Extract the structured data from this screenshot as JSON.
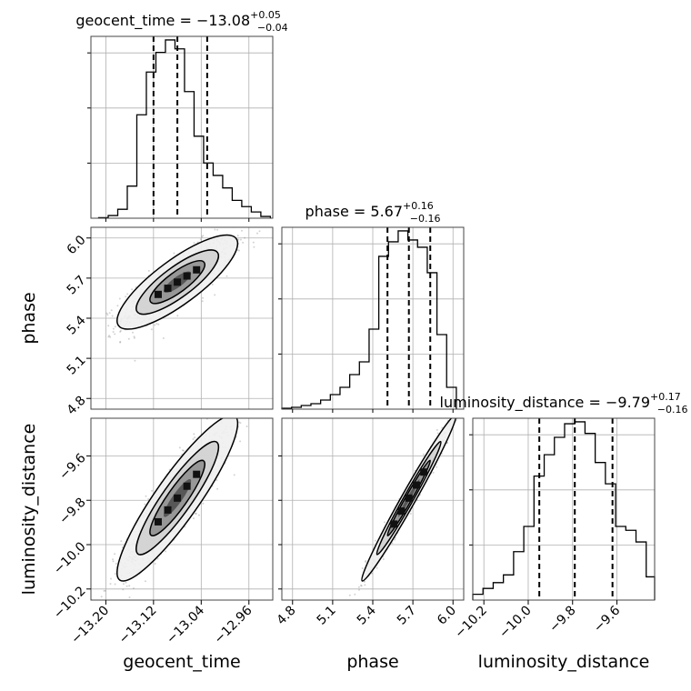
{
  "chart_data": {
    "type": "corner",
    "grid": true,
    "parameters": [
      {
        "name": "geocent_time",
        "xlabel": "geocent_time",
        "title": {
          "prefix": "geocent_time = ",
          "median": "−13.08",
          "upper": "+0.05",
          "lower": "−0.04"
        },
        "range": [
          -13.225,
          -12.92
        ],
        "ticks": [
          -13.2,
          -13.12,
          -13.04,
          -12.96
        ],
        "tick_labels": [
          "−13.20",
          "−13.12",
          "−13.04",
          "−12.96"
        ],
        "quantiles": [
          -13.12,
          -13.08,
          -13.03
        ],
        "hist": {
          "edges": [
            -13.212,
            -13.196,
            -13.18,
            -13.164,
            -13.148,
            -13.132,
            -13.116,
            -13.1,
            -13.084,
            -13.068,
            -13.052,
            -13.036,
            -13.02,
            -13.004,
            -12.988,
            -12.972,
            -12.956,
            -12.94,
            -12.924
          ],
          "counts": [
            0.3,
            1.5,
            5.0,
            18.0,
            58.0,
            82.0,
            93.0,
            100.0,
            95.0,
            71.0,
            46.0,
            31.0,
            24.0,
            17.0,
            10.0,
            6.5,
            3.5,
            1.0
          ]
        }
      },
      {
        "name": "phase",
        "xlabel": "phase",
        "ylabel": "phase",
        "title": {
          "prefix": "phase = ",
          "median": "5.67",
          "upper": "+0.16",
          "lower": "−0.16"
        },
        "range": [
          4.72,
          6.08
        ],
        "ticks": [
          4.8,
          5.1,
          5.4,
          5.7,
          6.0
        ],
        "tick_labels": [
          "4.8",
          "5.1",
          "5.4",
          "5.7",
          "6.0"
        ],
        "quantiles": [
          5.51,
          5.67,
          5.83
        ],
        "hist": {
          "edges": [
            4.72,
            4.7925,
            4.865,
            4.9375,
            5.01,
            5.0825,
            5.155,
            5.2275,
            5.3,
            5.3725,
            5.445,
            5.5175,
            5.59,
            5.6625,
            5.735,
            5.8075,
            5.88,
            5.9525,
            6.025
          ],
          "counts": [
            0.5,
            1.0,
            2.0,
            3.0,
            5.0,
            8.0,
            12.0,
            19.0,
            26.0,
            44.0,
            84.0,
            92.0,
            98.0,
            93.0,
            89.0,
            75.0,
            41.0,
            12.0
          ]
        }
      },
      {
        "name": "luminosity_distance",
        "xlabel": "luminosity_distance",
        "ylabel": "luminosity_distance",
        "title": {
          "prefix": "luminosity_distance = ",
          "median": "−9.79",
          "upper": "+0.17",
          "lower": "−0.16"
        },
        "range": [
          -10.25,
          -9.43
        ],
        "ticks": [
          -10.2,
          -10.0,
          -9.8,
          -9.6
        ],
        "tick_labels": [
          "−10.2",
          "−10.0",
          "−9.8",
          "−9.6"
        ],
        "quantiles": [
          -9.95,
          -9.79,
          -9.62
        ],
        "hist": {
          "edges": [
            -10.25,
            -10.204,
            -10.158,
            -10.112,
            -10.066,
            -10.02,
            -9.974,
            -9.928,
            -9.882,
            -9.836,
            -9.79,
            -9.744,
            -9.698,
            -9.652,
            -9.606,
            -9.56,
            -9.514,
            -9.468,
            -9.43
          ],
          "counts": [
            3.0,
            6.0,
            9.0,
            13.0,
            25.0,
            38.0,
            64.0,
            75.0,
            84.0,
            91.0,
            92.0,
            86.0,
            71.0,
            60.0,
            38.0,
            36.0,
            30.0,
            12.0
          ]
        }
      }
    ],
    "pairs": [
      {
        "x": "geocent_time",
        "y": "phase",
        "row": 1,
        "col": 0,
        "corr": 0.82,
        "mean": [
          -13.08,
          5.67
        ],
        "sd": [
          0.046,
          0.16
        ]
      },
      {
        "x": "geocent_time",
        "y": "luminosity_distance",
        "row": 2,
        "col": 0,
        "corr": 0.9,
        "mean": [
          -13.08,
          -9.79
        ],
        "sd": [
          0.046,
          0.17
        ]
      },
      {
        "x": "phase",
        "y": "luminosity_distance",
        "row": 2,
        "col": 1,
        "corr": 0.985,
        "mean": [
          5.67,
          -9.79
        ],
        "sd": [
          0.16,
          0.17
        ]
      }
    ]
  }
}
